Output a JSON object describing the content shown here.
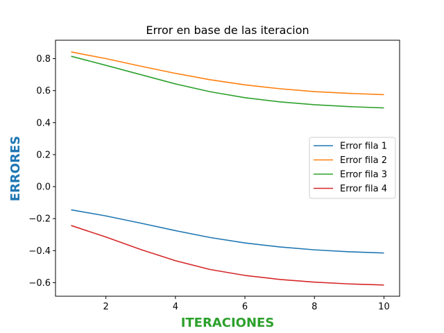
{
  "chart_data": {
    "type": "line",
    "title": "Error en base de las iteracion",
    "xlabel": "ITERACIONES",
    "ylabel": "ERRORES",
    "xlabel_color": "#2ca02c",
    "ylabel_color": "#1f77b4",
    "xlim": [
      0.55,
      10.45
    ],
    "ylim": [
      -0.685,
      0.915
    ],
    "xticks": [
      2,
      4,
      6,
      8,
      10
    ],
    "yticks": [
      -0.6,
      -0.4,
      -0.2,
      0.0,
      0.2,
      0.4,
      0.6,
      0.8
    ],
    "ytick_labels": [
      "−0.6",
      "−0.4",
      "−0.2",
      "0.0",
      "0.2",
      "0.4",
      "0.6",
      "0.8"
    ],
    "grid": false,
    "legend_position": "center-right",
    "x": [
      1,
      2,
      3,
      4,
      5,
      6,
      7,
      8,
      9,
      10
    ],
    "series": [
      {
        "name": "Error fila 1",
        "color": "#1f77b4",
        "values": [
          -0.145,
          -0.183,
          -0.228,
          -0.275,
          -0.318,
          -0.352,
          -0.377,
          -0.395,
          -0.407,
          -0.415
        ]
      },
      {
        "name": "Error fila 2",
        "color": "#ff7f0e",
        "values": [
          0.842,
          0.8,
          0.753,
          0.708,
          0.668,
          0.636,
          0.612,
          0.594,
          0.583,
          0.575
        ]
      },
      {
        "name": "Error fila 3",
        "color": "#2ca02c",
        "values": [
          0.815,
          0.758,
          0.7,
          0.642,
          0.593,
          0.556,
          0.53,
          0.512,
          0.5,
          0.492
        ]
      },
      {
        "name": "Error fila 4",
        "color": "#d62728",
        "values": [
          -0.243,
          -0.315,
          -0.393,
          -0.463,
          -0.518,
          -0.555,
          -0.58,
          -0.597,
          -0.608,
          -0.615
        ]
      }
    ]
  }
}
